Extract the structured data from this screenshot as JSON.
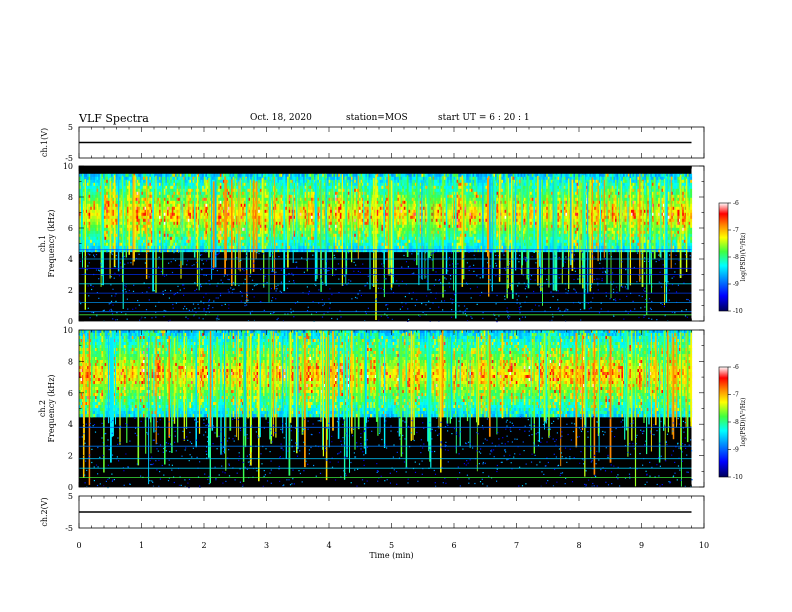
{
  "header": {
    "title": "VLF Spectra",
    "date": "Oct. 18, 2020",
    "station": "station=MOS",
    "start": "start  UT =   6 : 20 : 1"
  },
  "chart_data": [
    {
      "type": "line",
      "panel": "waveform-ch1",
      "ylabel": "ch.1(V)",
      "ylim": [
        -5,
        5
      ],
      "yticks": [
        5,
        -5
      ],
      "x": [
        0,
        9.8
      ],
      "values": [
        0,
        0
      ]
    },
    {
      "type": "heatmap",
      "panel": "spectrogram-ch1",
      "ylabel": "ch.1\nFrequency (kHz)",
      "ylim": [
        0,
        10
      ],
      "yticks": [
        0,
        2,
        4,
        6,
        8,
        10
      ],
      "xlim": [
        0,
        10
      ],
      "data_end_min": 9.8,
      "colorbar": {
        "label": "log(PSD)(V²/Hz)",
        "range": [
          -10,
          -6
        ],
        "ticks": [
          -6,
          -7,
          -8,
          -9,
          -10
        ]
      },
      "emission_band_khz": [
        4.5,
        9.5
      ]
    },
    {
      "type": "heatmap",
      "panel": "spectrogram-ch2",
      "ylabel": "ch.2\nFrequency (kHz)",
      "ylim": [
        0,
        10
      ],
      "yticks": [
        0,
        2,
        4,
        6,
        8,
        10
      ],
      "xlim": [
        0,
        10
      ],
      "data_end_min": 9.8,
      "colorbar": {
        "label": "log(PSD)(V²/Hz)",
        "range": [
          -10,
          -6
        ],
        "ticks": [
          -6,
          -7,
          -8,
          -9,
          -10
        ]
      },
      "emission_band_khz": [
        4.5,
        10
      ]
    },
    {
      "type": "line",
      "panel": "waveform-ch2",
      "ylabel": "ch.2(V)",
      "ylim": [
        -5,
        5
      ],
      "yticks": [
        5,
        -5
      ],
      "x": [
        0,
        9.8
      ],
      "values": [
        0,
        0
      ],
      "xlabel": "Time (min)",
      "xlim": [
        0,
        10
      ],
      "xticks": [
        0,
        1,
        2,
        3,
        4,
        5,
        6,
        7,
        8,
        9,
        10
      ]
    }
  ],
  "colors": {
    "background": "#000000",
    "colormap": [
      "#00005a",
      "#0000ff",
      "#0090ff",
      "#00ffff",
      "#40ff40",
      "#ffff00",
      "#ff8000",
      "#ff0000",
      "#ffffff"
    ]
  }
}
